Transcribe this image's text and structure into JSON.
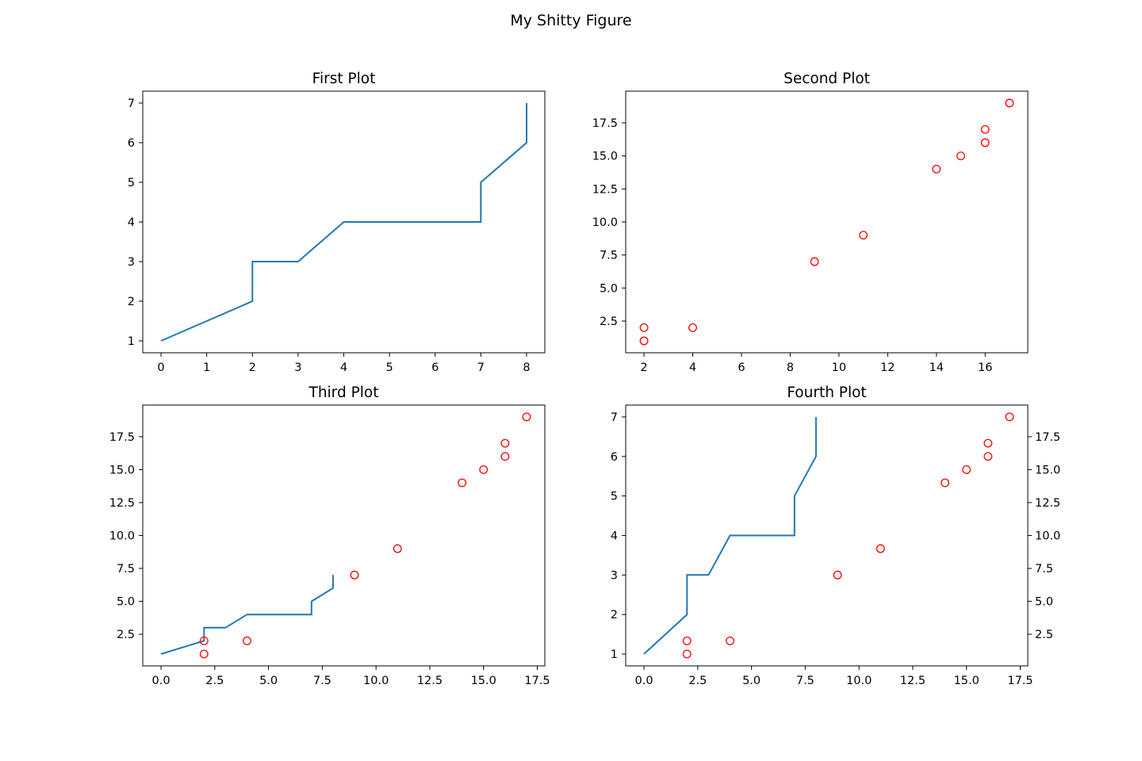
{
  "figure": {
    "suptitle": "My Shitty Figure"
  },
  "colors": {
    "line": "#1f77b4",
    "marker": "#ff0000",
    "axes": "#000000"
  },
  "chart_data": [
    {
      "type": "line",
      "title": "First Plot",
      "xlim": [
        -0.4,
        8.4
      ],
      "ylim": [
        0.7,
        7.3
      ],
      "xticks": [
        0,
        1,
        2,
        3,
        4,
        5,
        6,
        7,
        8
      ],
      "xtick_labels": [
        "0",
        "1",
        "2",
        "3",
        "4",
        "5",
        "6",
        "7",
        "8"
      ],
      "yticks": [
        1,
        2,
        3,
        4,
        5,
        6,
        7
      ],
      "ytick_labels": [
        "1",
        "2",
        "3",
        "4",
        "5",
        "6",
        "7"
      ],
      "series": [
        {
          "style": "line",
          "x": [
            0,
            1,
            2,
            2,
            3,
            4,
            5,
            6,
            7,
            7,
            8,
            8
          ],
          "y": [
            1,
            1.5,
            2,
            3,
            3,
            4,
            4,
            4,
            4,
            5,
            6,
            7
          ]
        }
      ]
    },
    {
      "type": "scatter",
      "title": "Second Plot",
      "xlim": [
        1.25,
        17.75
      ],
      "ylim": [
        0.1,
        19.9
      ],
      "xticks": [
        2,
        4,
        6,
        8,
        10,
        12,
        14,
        16
      ],
      "xtick_labels": [
        "2",
        "4",
        "6",
        "8",
        "10",
        "12",
        "14",
        "16"
      ],
      "yticks": [
        2.5,
        5,
        7.5,
        10,
        12.5,
        15,
        17.5
      ],
      "ytick_labels": [
        "2.5",
        "5.0",
        "7.5",
        "10.0",
        "12.5",
        "15.0",
        "17.5"
      ],
      "series": [
        {
          "style": "markers",
          "x": [
            2,
            2,
            4,
            9,
            11,
            14,
            15,
            16,
            16,
            17
          ],
          "y": [
            1,
            2,
            2,
            7,
            9,
            14,
            15,
            16,
            17,
            19
          ]
        }
      ]
    },
    {
      "type": "line",
      "title": "Third Plot",
      "xlim": [
        -0.85,
        17.85
      ],
      "ylim": [
        0.1,
        19.9
      ],
      "xticks": [
        0,
        2.5,
        5,
        7.5,
        10,
        12.5,
        15,
        17.5
      ],
      "xtick_labels": [
        "0.0",
        "2.5",
        "5.0",
        "7.5",
        "10.0",
        "12.5",
        "15.0",
        "17.5"
      ],
      "yticks": [
        2.5,
        5,
        7.5,
        10,
        12.5,
        15,
        17.5
      ],
      "ytick_labels": [
        "2.5",
        "5.0",
        "7.5",
        "10.0",
        "12.5",
        "15.0",
        "17.5"
      ],
      "series": [
        {
          "style": "line",
          "x": [
            0,
            1,
            2,
            2,
            3,
            4,
            5,
            6,
            7,
            7,
            8,
            8
          ],
          "y": [
            1,
            1.5,
            2,
            3,
            3,
            4,
            4,
            4,
            4,
            5,
            6,
            7
          ]
        },
        {
          "style": "markers",
          "x": [
            2,
            2,
            4,
            9,
            11,
            14,
            15,
            16,
            16,
            17
          ],
          "y": [
            1,
            2,
            2,
            7,
            9,
            14,
            15,
            16,
            17,
            19
          ]
        }
      ]
    },
    {
      "type": "line",
      "title": "Fourth Plot",
      "xlim": [
        -0.85,
        17.85
      ],
      "ylim": [
        0.7,
        7.3
      ],
      "xticks": [
        0,
        2.5,
        5,
        7.5,
        10,
        12.5,
        15,
        17.5
      ],
      "xtick_labels": [
        "0.0",
        "2.5",
        "5.0",
        "7.5",
        "10.0",
        "12.5",
        "15.0",
        "17.5"
      ],
      "yticks": [
        1,
        2,
        3,
        4,
        5,
        6,
        7
      ],
      "ytick_labels": [
        "1",
        "2",
        "3",
        "4",
        "5",
        "6",
        "7"
      ],
      "y2lim": [
        0.1,
        19.9
      ],
      "y2ticks": [
        2.5,
        5,
        7.5,
        10,
        12.5,
        15,
        17.5
      ],
      "y2tick_labels": [
        "2.5",
        "5.0",
        "7.5",
        "10.0",
        "12.5",
        "15.0",
        "17.5"
      ],
      "series": [
        {
          "style": "line",
          "axis": "left",
          "x": [
            0,
            1,
            2,
            2,
            3,
            4,
            5,
            6,
            7,
            7,
            8,
            8
          ],
          "y": [
            1,
            1.5,
            2,
            3,
            3,
            4,
            4,
            4,
            4,
            5,
            6,
            7
          ]
        },
        {
          "style": "markers",
          "axis": "right",
          "x": [
            2,
            2,
            4,
            9,
            11,
            14,
            15,
            16,
            16,
            17
          ],
          "y": [
            1,
            2,
            2,
            7,
            9,
            14,
            15,
            16,
            17,
            19
          ]
        }
      ]
    }
  ]
}
